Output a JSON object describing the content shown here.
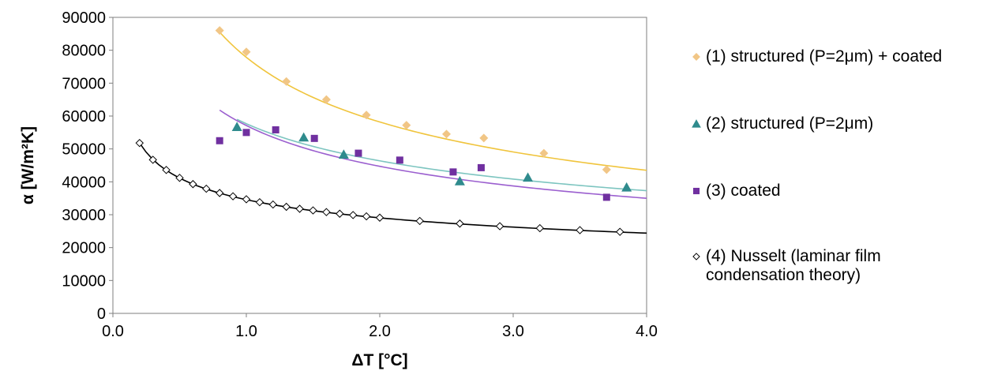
{
  "chart_data": {
    "type": "scatter",
    "title": "",
    "xlabel": "ΔT [°C]",
    "ylabel": "α [W/m²K]",
    "xlim": [
      0.0,
      4.0
    ],
    "ylim": [
      0,
      90000
    ],
    "x_ticks": [
      "0.0",
      "1.0",
      "2.0",
      "3.0",
      "4.0"
    ],
    "x_tick_values": [
      0,
      1,
      2,
      3,
      4
    ],
    "y_ticks": [
      "0",
      "10000",
      "20000",
      "30000",
      "40000",
      "50000",
      "60000",
      "70000",
      "80000",
      "90000"
    ],
    "y_tick_values": [
      0,
      10000,
      20000,
      30000,
      40000,
      50000,
      60000,
      70000,
      80000,
      90000
    ],
    "grid": false,
    "legend_position": "right",
    "series": [
      {
        "name": "(1) structured (P=2μm) + coated",
        "marker": "diamond",
        "color": "#F1C686",
        "points": [
          [
            0.8,
            86000
          ],
          [
            1.0,
            79500
          ],
          [
            1.3,
            70500
          ],
          [
            1.6,
            65000
          ],
          [
            1.9,
            60300
          ],
          [
            2.2,
            57200
          ],
          [
            2.5,
            54500
          ],
          [
            2.78,
            53300
          ],
          [
            3.23,
            48700
          ],
          [
            3.7,
            43700
          ]
        ],
        "trendline": {
          "color": "#F0C43C",
          "x_range": [
            0.8,
            4.0
          ],
          "y": [
            85500,
            43500
          ]
        }
      },
      {
        "name": "(2) structured (P=2μm)",
        "marker": "triangle",
        "color": "#2F8B8D",
        "points": [
          [
            0.93,
            56700
          ],
          [
            1.43,
            53500
          ],
          [
            1.73,
            48300
          ],
          [
            2.6,
            40200
          ],
          [
            3.11,
            41300
          ],
          [
            3.85,
            38300
          ]
        ],
        "trendline": {
          "color": "#7DC5C0",
          "x_range": [
            0.93,
            4.0
          ],
          "y": [
            59000,
            37300
          ]
        }
      },
      {
        "name": "(3) coated",
        "marker": "square",
        "color": "#7030A0",
        "points": [
          [
            0.8,
            52500
          ],
          [
            1.0,
            55000
          ],
          [
            1.22,
            55800
          ],
          [
            1.51,
            53200
          ],
          [
            1.84,
            48700
          ],
          [
            2.15,
            46600
          ],
          [
            2.55,
            43000
          ],
          [
            2.76,
            44300
          ],
          [
            3.7,
            35300
          ]
        ],
        "trendline": {
          "color": "#9B5FCF",
          "x_range": [
            0.8,
            4.0
          ],
          "y": [
            61800,
            35000
          ]
        }
      },
      {
        "name": "(4) Nusselt (laminar film\ncondensation theory)",
        "marker": "diamond-open",
        "color": "#000000",
        "points": [
          [
            0.2,
            51800
          ],
          [
            0.3,
            46700
          ],
          [
            0.4,
            43600
          ],
          [
            0.5,
            41200
          ],
          [
            0.6,
            39300
          ],
          [
            0.7,
            37900
          ],
          [
            0.8,
            36600
          ],
          [
            0.9,
            35600
          ],
          [
            1.0,
            34700
          ],
          [
            1.1,
            33800
          ],
          [
            1.2,
            33100
          ],
          [
            1.3,
            32400
          ],
          [
            1.4,
            31800
          ],
          [
            1.5,
            31300
          ],
          [
            1.6,
            30800
          ],
          [
            1.7,
            30300
          ],
          [
            1.8,
            29900
          ],
          [
            1.9,
            29500
          ],
          [
            2.0,
            29100
          ],
          [
            2.3,
            28100
          ],
          [
            2.6,
            27300
          ],
          [
            2.9,
            26500
          ],
          [
            3.2,
            25900
          ],
          [
            3.5,
            25300
          ],
          [
            3.8,
            24800
          ]
        ],
        "trendline": {
          "color": "#000000",
          "x_range": [
            0.2,
            4.0
          ],
          "y": [
            51800,
            24400
          ]
        }
      }
    ]
  }
}
